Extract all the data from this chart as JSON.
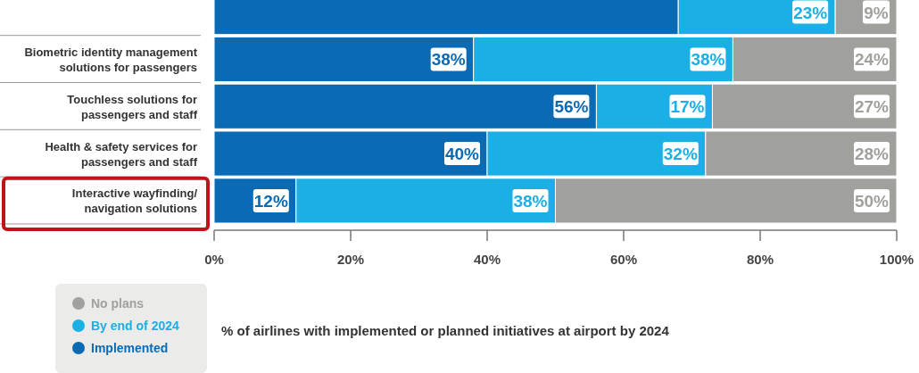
{
  "chart_data": {
    "type": "bar",
    "orientation": "horizontal",
    "stacked": true,
    "categories": [
      null,
      "Biometric identity management solutions for passengers",
      "Touchless solutions for passengers and staff",
      "Health & safety services for passengers and staff",
      "Interactive wayfinding/ navigation solutions"
    ],
    "series": [
      {
        "name": "Implemented",
        "color": "#0a6ab4",
        "values": [
          68,
          38,
          56,
          40,
          12
        ],
        "value_labels": [
          null,
          "38%",
          "56%",
          "40%",
          "12%"
        ]
      },
      {
        "name": "By end of 2024",
        "color": "#1ab0e6",
        "values": [
          23,
          38,
          17,
          32,
          38
        ],
        "value_labels": [
          "23%",
          "38%",
          "17%",
          "32%",
          "38%"
        ]
      },
      {
        "name": "No plans",
        "color": "#a0a09c",
        "values": [
          9,
          24,
          27,
          28,
          50
        ],
        "value_labels": [
          "9%",
          "24%",
          "27%",
          "28%",
          "50%"
        ]
      }
    ],
    "xlim": [
      0,
      100
    ],
    "xticks": [
      {
        "value": 0,
        "label": "0%"
      },
      {
        "value": 20,
        "label": "20%"
      },
      {
        "value": 40,
        "label": "40%"
      },
      {
        "value": 60,
        "label": "60%"
      },
      {
        "value": 80,
        "label": "80%"
      },
      {
        "value": 100,
        "label": "100%"
      }
    ],
    "legend": "bottom left",
    "annotations": [
      "% of airlines with implemented or planned initiatives at airport by 2024"
    ]
  }
}
